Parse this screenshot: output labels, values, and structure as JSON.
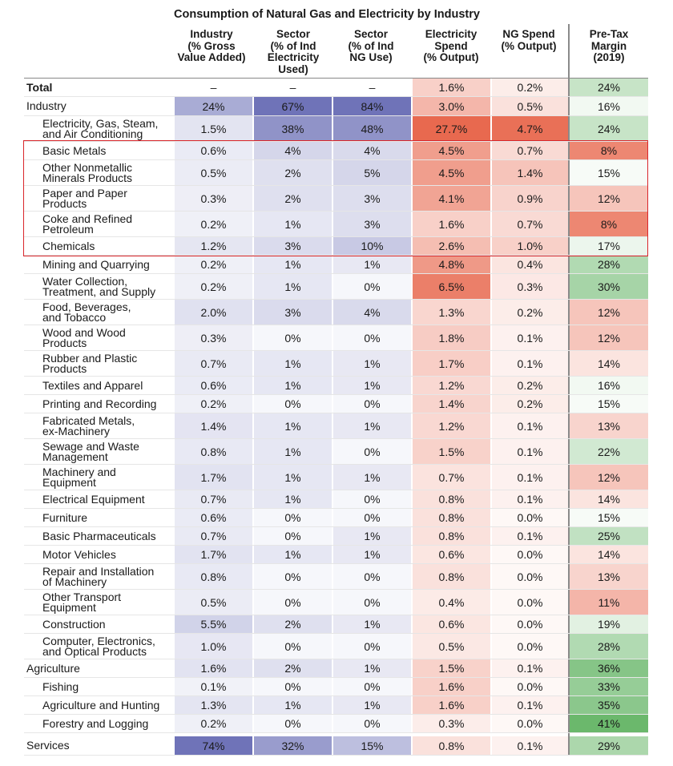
{
  "chart_data": {
    "type": "table",
    "title": "Consumption of Natural Gas and Electricity by Industry",
    "columns": [
      {
        "key": "industry_gva",
        "label": [
          "Industry",
          "(% Gross",
          "Value Added)"
        ],
        "scale": "blue",
        "max": 74
      },
      {
        "key": "sector_elec",
        "label": [
          "Sector",
          "(% of Ind",
          "Electricity",
          "Used)"
        ],
        "scale": "blue",
        "max": 67
      },
      {
        "key": "sector_ng",
        "label": [
          "Sector",
          "(% of Ind",
          "NG Use)"
        ],
        "scale": "blue",
        "max": 84
      },
      {
        "key": "elec_spend",
        "label": [
          "Electricity",
          "Spend",
          "(% Output)"
        ],
        "scale": "red",
        "max": 8
      },
      {
        "key": "ng_spend",
        "label": [
          "NG Spend",
          "(% Output)"
        ],
        "scale": "red",
        "max": 5
      },
      {
        "key": "margin",
        "label": [
          "Pre-Tax",
          "Margin",
          "(2019)"
        ],
        "scale": "diverging",
        "center": 15
      }
    ],
    "rows": [
      {
        "label": "Total",
        "level": 0,
        "bold": true,
        "values": [
          "–",
          "–",
          "–",
          "1.6%",
          "0.2%",
          "24%"
        ]
      },
      {
        "label": "Industry",
        "level": 0,
        "values": [
          "24%",
          "67%",
          "84%",
          "3.0%",
          "0.5%",
          "16%"
        ]
      },
      {
        "label": "Electricity, Gas, Steam, and Air Conditioning",
        "lines": [
          "Electricity, Gas, Steam,",
          "and Air Conditioning"
        ],
        "level": 1,
        "values": [
          "1.5%",
          "38%",
          "48%",
          "27.7%",
          "4.7%",
          "24%"
        ]
      },
      {
        "label": "Basic Metals",
        "level": 1,
        "highlight": true,
        "values": [
          "0.6%",
          "4%",
          "4%",
          "4.5%",
          "0.7%",
          "8%"
        ]
      },
      {
        "label": "Other Nonmetallic Minerals Products",
        "lines": [
          "Other Nonmetallic",
          "Minerals Products"
        ],
        "level": 1,
        "highlight": true,
        "values": [
          "0.5%",
          "2%",
          "5%",
          "4.5%",
          "1.4%",
          "15%"
        ]
      },
      {
        "label": "Paper and Paper Products",
        "lines": [
          "Paper and Paper",
          "Products"
        ],
        "level": 1,
        "highlight": true,
        "values": [
          "0.3%",
          "2%",
          "3%",
          "4.1%",
          "0.9%",
          "12%"
        ]
      },
      {
        "label": "Coke and Refined Petroleum",
        "lines": [
          "Coke and Refined",
          "Petroleum"
        ],
        "level": 1,
        "highlight": true,
        "values": [
          "0.2%",
          "1%",
          "3%",
          "1.6%",
          "0.7%",
          "8%"
        ]
      },
      {
        "label": "Chemicals",
        "level": 1,
        "highlight": true,
        "values": [
          "1.2%",
          "3%",
          "10%",
          "2.6%",
          "1.0%",
          "17%"
        ]
      },
      {
        "label": "Mining and Quarrying",
        "level": 1,
        "values": [
          "0.2%",
          "1%",
          "1%",
          "4.8%",
          "0.4%",
          "28%"
        ]
      },
      {
        "label": "Water Collection, Treatment, and Supply",
        "lines": [
          "Water Collection,",
          "Treatment, and Supply"
        ],
        "level": 1,
        "values": [
          "0.2%",
          "1%",
          "0%",
          "6.5%",
          "0.3%",
          "30%"
        ]
      },
      {
        "label": "Food, Beverages, and Tobacco",
        "lines": [
          "Food, Beverages,",
          "and Tobacco"
        ],
        "level": 1,
        "values": [
          "2.0%",
          "3%",
          "4%",
          "1.3%",
          "0.2%",
          "12%"
        ]
      },
      {
        "label": "Wood and Wood Products",
        "lines": [
          "Wood and Wood",
          "Products"
        ],
        "level": 1,
        "values": [
          "0.3%",
          "0%",
          "0%",
          "1.8%",
          "0.1%",
          "12%"
        ]
      },
      {
        "label": "Rubber and Plastic Products",
        "lines": [
          "Rubber and Plastic",
          "Products"
        ],
        "level": 1,
        "values": [
          "0.7%",
          "1%",
          "1%",
          "1.7%",
          "0.1%",
          "14%"
        ]
      },
      {
        "label": "Textiles and Apparel",
        "level": 1,
        "values": [
          "0.6%",
          "1%",
          "1%",
          "1.2%",
          "0.2%",
          "16%"
        ]
      },
      {
        "label": "Printing and Recording",
        "level": 1,
        "values": [
          "0.2%",
          "0%",
          "0%",
          "1.4%",
          "0.2%",
          "15%"
        ]
      },
      {
        "label": "Fabricated Metals, ex-Machinery",
        "lines": [
          "Fabricated Metals,",
          "ex-Machinery"
        ],
        "level": 1,
        "values": [
          "1.4%",
          "1%",
          "1%",
          "1.2%",
          "0.1%",
          "13%"
        ]
      },
      {
        "label": "Sewage and Waste Management",
        "lines": [
          "Sewage and Waste",
          "Management"
        ],
        "level": 1,
        "values": [
          "0.8%",
          "1%",
          "0%",
          "1.5%",
          "0.1%",
          "22%"
        ]
      },
      {
        "label": "Machinery and Equipment",
        "lines": [
          "Machinery and",
          "Equipment"
        ],
        "level": 1,
        "values": [
          "1.7%",
          "1%",
          "1%",
          "0.7%",
          "0.1%",
          "12%"
        ]
      },
      {
        "label": "Electrical Equipment",
        "level": 1,
        "values": [
          "0.7%",
          "1%",
          "0%",
          "0.8%",
          "0.1%",
          "14%"
        ]
      },
      {
        "label": "Furniture",
        "level": 1,
        "values": [
          "0.6%",
          "0%",
          "0%",
          "0.8%",
          "0.0%",
          "15%"
        ]
      },
      {
        "label": "Basic Pharmaceuticals",
        "level": 1,
        "values": [
          "0.7%",
          "0%",
          "1%",
          "0.8%",
          "0.1%",
          "25%"
        ]
      },
      {
        "label": "Motor Vehicles",
        "level": 1,
        "values": [
          "1.7%",
          "1%",
          "1%",
          "0.6%",
          "0.0%",
          "14%"
        ]
      },
      {
        "label": "Repair and Installation of Machinery",
        "lines": [
          "Repair and Installation",
          "of Machinery"
        ],
        "level": 1,
        "values": [
          "0.8%",
          "0%",
          "0%",
          "0.8%",
          "0.0%",
          "13%"
        ]
      },
      {
        "label": "Other Transport Equipment",
        "lines": [
          "Other Transport",
          "Equipment"
        ],
        "level": 1,
        "values": [
          "0.5%",
          "0%",
          "0%",
          "0.4%",
          "0.0%",
          "11%"
        ]
      },
      {
        "label": "Construction",
        "level": 1,
        "values": [
          "5.5%",
          "2%",
          "1%",
          "0.6%",
          "0.0%",
          "19%"
        ]
      },
      {
        "label": "Computer, Electronics, and Optical Products",
        "lines": [
          "Computer, Electronics,",
          "and Optical Products"
        ],
        "level": 1,
        "values": [
          "1.0%",
          "0%",
          "0%",
          "0.5%",
          "0.0%",
          "28%"
        ]
      },
      {
        "label": "Agriculture",
        "level": 0,
        "values": [
          "1.6%",
          "2%",
          "1%",
          "1.5%",
          "0.1%",
          "36%"
        ]
      },
      {
        "label": "Fishing",
        "level": 1,
        "values": [
          "0.1%",
          "0%",
          "0%",
          "1.6%",
          "0.0%",
          "33%"
        ]
      },
      {
        "label": "Agriculture and Hunting",
        "level": 1,
        "values": [
          "1.3%",
          "1%",
          "1%",
          "1.6%",
          "0.1%",
          "35%"
        ]
      },
      {
        "label": "Forestry and Logging",
        "level": 1,
        "values": [
          "0.2%",
          "0%",
          "0%",
          "0.3%",
          "0.0%",
          "41%"
        ]
      },
      {
        "label": "Services",
        "level": 0,
        "values": [
          "74%",
          "32%",
          "15%",
          "0.8%",
          "0.1%",
          "29%"
        ]
      }
    ]
  },
  "colors": {
    "blue": "#6f73b8",
    "red": "#e8694f",
    "green": "#63b464",
    "highlight_border": "#d9262b",
    "separator": "#8a8a8a"
  }
}
